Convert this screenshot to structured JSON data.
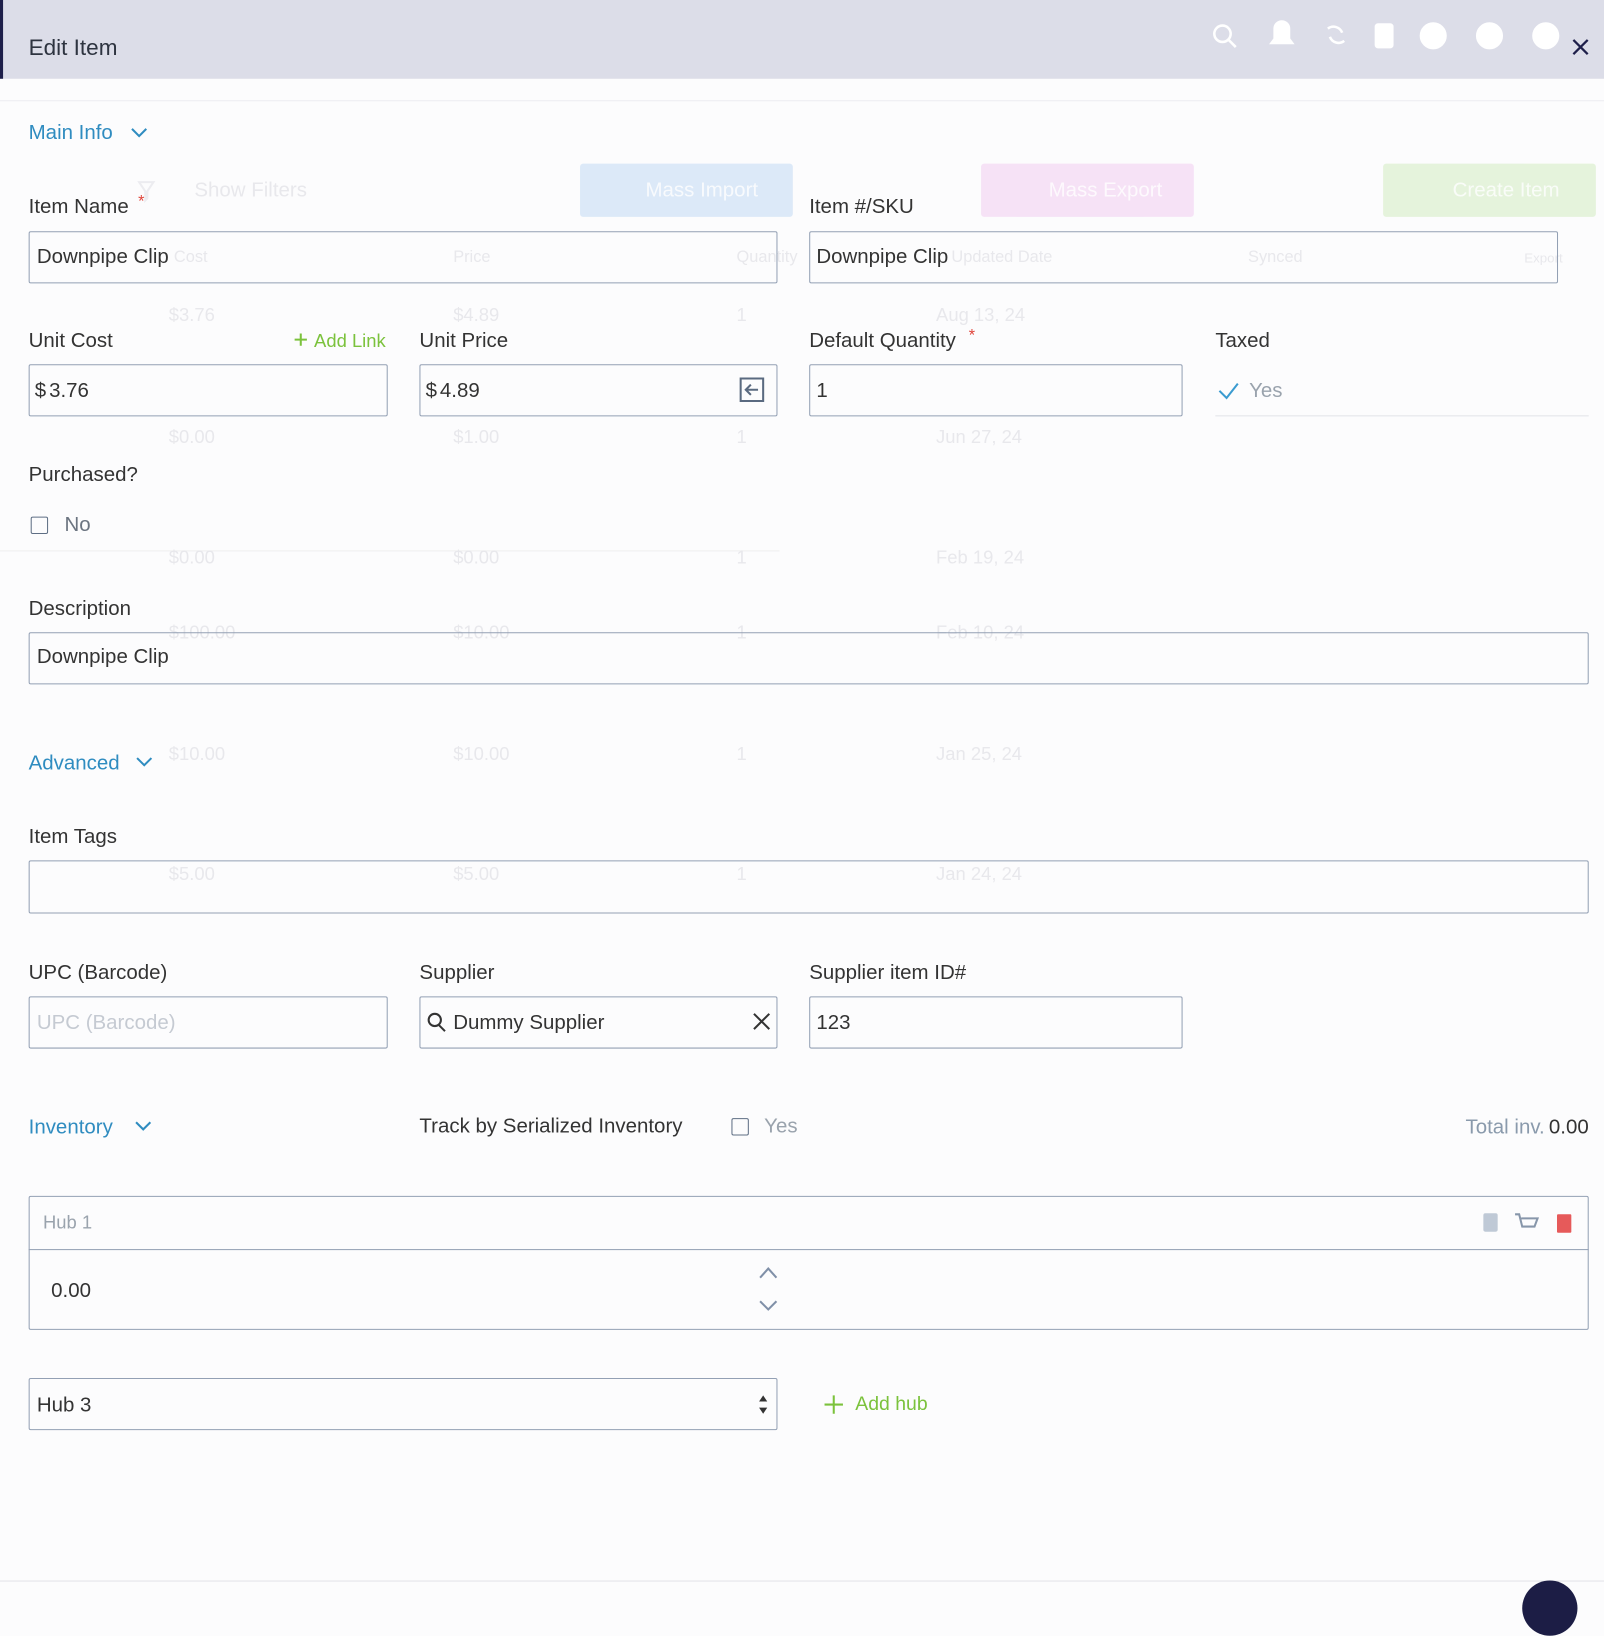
{
  "header": {
    "title": "Edit Item"
  },
  "background": {
    "filters": "Show Filters",
    "buttons": [
      "Mass Import",
      "Mass Export",
      "Create Item"
    ],
    "columns": [
      "Cost",
      "Price",
      "Quantity",
      "Updated Date",
      "Synced",
      "Export"
    ],
    "rows": [
      [
        "$3.76",
        "$4.89",
        "1",
        "Aug 13, 24"
      ],
      [
        "$0.00",
        "$1.00",
        "1",
        "Jun 27, 24"
      ],
      [
        "$0.00",
        "$0.00",
        "1",
        "Feb 19, 24"
      ],
      [
        "$100.00",
        "$10.00",
        "1",
        "Feb 10, 24"
      ],
      [
        "$10.00",
        "$10.00",
        "1",
        "Jan 25, 24"
      ],
      [
        "$5.00",
        "$5.00",
        "1",
        "Jan 24, 24"
      ]
    ]
  },
  "main_info": {
    "heading": "Main Info",
    "item_name": {
      "label": "Item Name",
      "required": "*",
      "value": "Downpipe Clip"
    },
    "sku": {
      "label": "Item #/SKU",
      "value": "Downpipe Clip"
    },
    "unit_cost": {
      "label": "Unit Cost",
      "link": "Add Link",
      "currency": "$",
      "value": "3.76"
    },
    "unit_price": {
      "label": "Unit Price",
      "currency": "$",
      "value": "4.89"
    },
    "default_quantity": {
      "label": "Default Quantity",
      "required": "*",
      "value": "1"
    },
    "taxed": {
      "label": "Taxed",
      "value": "Yes"
    },
    "purchased": {
      "label": "Purchased?",
      "value": "No"
    },
    "description": {
      "label": "Description",
      "value": "Downpipe Clip"
    }
  },
  "advanced": {
    "heading": "Advanced",
    "item_tags": {
      "label": "Item Tags"
    },
    "upc": {
      "label": "UPC (Barcode)",
      "placeholder": "UPC (Barcode)"
    },
    "supplier": {
      "label": "Supplier",
      "value": "Dummy Supplier"
    },
    "supplier_item_id": {
      "label": "Supplier item ID#",
      "value": "123"
    }
  },
  "inventory": {
    "heading": "Inventory",
    "serialized": {
      "label": "Track by Serialized Inventory",
      "value": "Yes"
    },
    "total": {
      "label": "Total inv.",
      "value": "0.00"
    },
    "hubs": [
      {
        "name": "Hub 1",
        "quantity": "0.00"
      }
    ],
    "hub_select": "Hub 3",
    "add_hub": "Add hub"
  }
}
